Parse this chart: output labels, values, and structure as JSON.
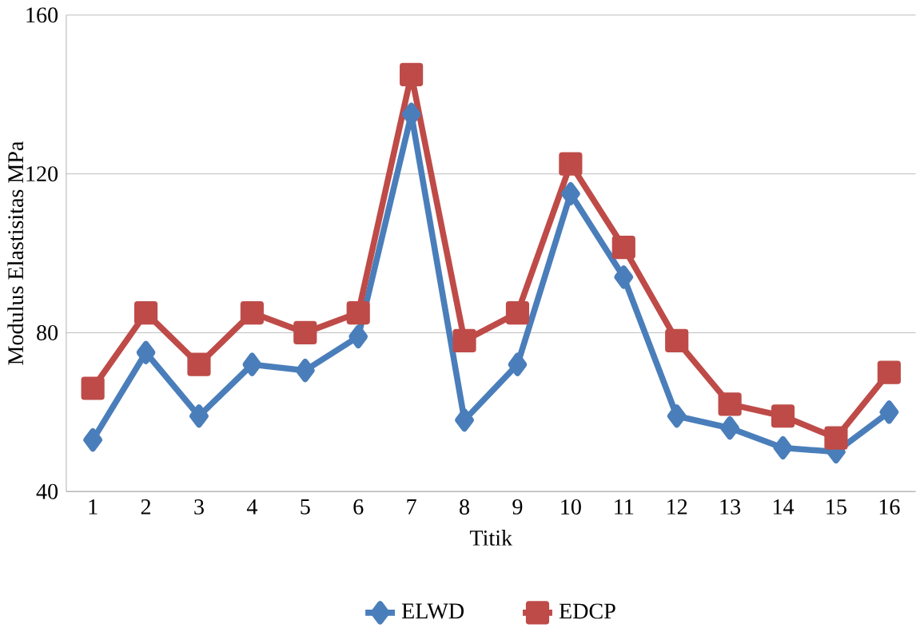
{
  "chart_data": {
    "type": "line",
    "xlabel": "Titik",
    "ylabel": "Modulus Elastisitas MPa",
    "categories": [
      "1",
      "2",
      "3",
      "4",
      "5",
      "6",
      "7",
      "8",
      "9",
      "10",
      "11",
      "12",
      "13",
      "14",
      "15",
      "16"
    ],
    "series": [
      {
        "name": "ELWD",
        "color": "#4a7ebb",
        "marker": "diamond",
        "values": [
          53,
          75,
          59,
          72,
          70.5,
          79,
          135,
          58,
          72,
          115,
          94,
          59,
          56,
          51,
          50,
          60
        ]
      },
      {
        "name": "EDCP",
        "color": "#be4b48",
        "marker": "square",
        "values": [
          66,
          85,
          72,
          85,
          80,
          85,
          145,
          78,
          85,
          122.5,
          101.5,
          78,
          62,
          59,
          53.5,
          70
        ]
      }
    ],
    "ylim": [
      40,
      160
    ],
    "yticks": [
      40,
      80,
      120,
      160
    ],
    "grid": "y",
    "legend": "bottom",
    "line_style": "solid"
  }
}
